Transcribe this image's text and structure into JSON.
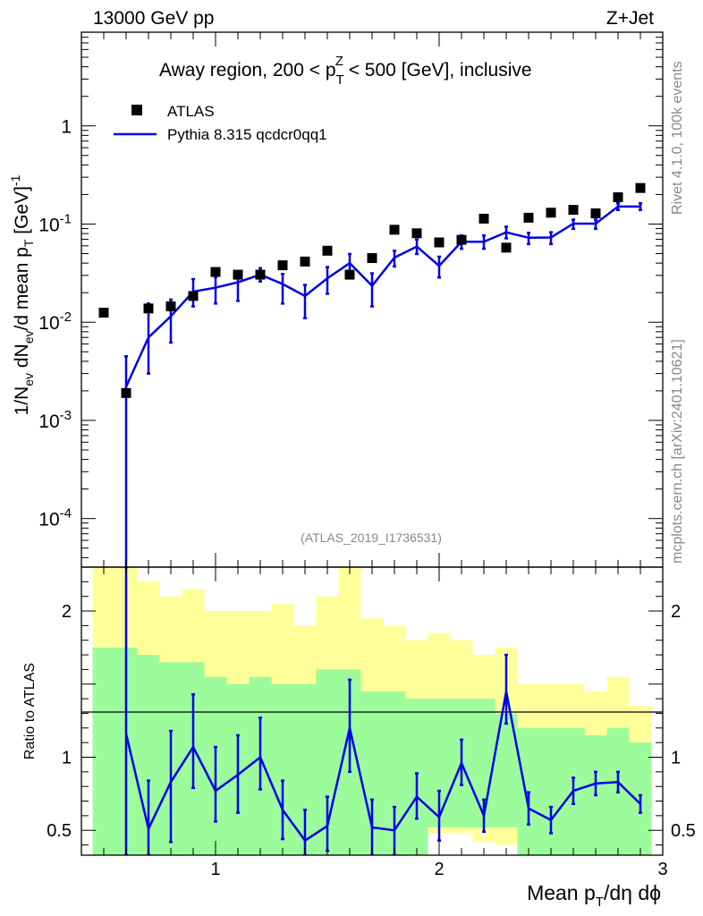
{
  "header": {
    "left": "13000 GeV pp",
    "right": "Z+Jet"
  },
  "side": {
    "rivet": "Rivet 4.1.0,  100k events",
    "mcplots": "mcplots.cern.ch [arXiv:2401.10621]"
  },
  "chart_data": [
    {
      "type": "scatter+line",
      "title": "Away region, 200 < p_T^Z < 500 [GeV], inclusive",
      "title_parts": {
        "pre": "Away region, 200 < p",
        "sub": "T",
        "sup": "Z",
        "post": " < 500 [GeV], inclusive"
      },
      "watermark": "(ATLAS_2019_I1736531)",
      "ylabel": "1/N_ev dN_ev/d mean p_T [GeV]^-1",
      "ylabel_parts": {
        "a": "1/N",
        "a_sub": "ev",
        "b": " dN",
        "b_sub": "ev",
        "c": "/d mean p",
        "c_sub": "T",
        "d": " [GeV]",
        "d_sup": "-1"
      },
      "yscale": "log",
      "ylim": [
        3.2e-05,
        9.0
      ],
      "xlim": [
        0.4,
        3.0
      ],
      "yticks": [
        {
          "v": 0.0001,
          "m": "10",
          "e": "-4"
        },
        {
          "v": 0.001,
          "m": "10",
          "e": "-3"
        },
        {
          "v": 0.01,
          "m": "10",
          "e": "-2"
        },
        {
          "v": 0.1,
          "m": "10",
          "e": "-1"
        },
        {
          "v": 1,
          "m": "1",
          "e": ""
        }
      ],
      "legend": {
        "data": "ATLAS",
        "mc": "Pythia 8.315 qcdcr0qq1"
      },
      "series": [
        {
          "name": "ATLAS",
          "x": [
            0.5,
            0.6,
            0.7,
            0.8,
            0.9,
            1.0,
            1.1,
            1.2,
            1.3,
            1.4,
            1.5,
            1.6,
            1.7,
            1.8,
            1.9,
            2.0,
            2.1,
            2.2,
            2.3,
            2.4,
            2.5,
            2.6,
            2.7,
            2.8,
            2.9
          ],
          "y": [
            0.0125,
            0.0019,
            0.0138,
            0.0145,
            0.0185,
            0.0325,
            0.0305,
            0.0305,
            0.038,
            0.0415,
            0.0535,
            0.0305,
            0.045,
            0.0875,
            0.0805,
            0.065,
            0.069,
            0.1135,
            0.0575,
            0.116,
            0.1305,
            0.1395,
            0.1285,
            0.1875,
            0.233
          ]
        },
        {
          "name": "Pythia 8.315 qcdcr0qq1",
          "x": [
            0.6,
            0.7,
            0.8,
            0.9,
            1.0,
            1.1,
            1.2,
            1.3,
            1.4,
            1.5,
            1.6,
            1.7,
            1.8,
            1.9,
            2.0,
            2.1,
            2.2,
            2.3,
            2.4,
            2.5,
            2.6,
            2.7,
            2.8,
            2.9
          ],
          "y": [
            0.0022,
            0.007,
            0.0115,
            0.0205,
            0.0225,
            0.0255,
            0.0305,
            0.0245,
            0.0185,
            0.028,
            0.04,
            0.0235,
            0.0455,
            0.059,
            0.0375,
            0.066,
            0.066,
            0.0825,
            0.0725,
            0.073,
            0.101,
            0.101,
            0.151,
            0.151
          ],
          "ylo": [
            3e-05,
            0.003,
            0.0062,
            0.0145,
            0.0155,
            0.0165,
            0.026,
            0.0155,
            0.011,
            0.0195,
            0.0325,
            0.0145,
            0.037,
            0.0495,
            0.0285,
            0.056,
            0.056,
            0.0715,
            0.0625,
            0.0625,
            0.0895,
            0.0895,
            0.139,
            0.139
          ],
          "yhi": [
            0.0045,
            0.0155,
            0.017,
            0.0275,
            0.029,
            0.031,
            0.0355,
            0.031,
            0.024,
            0.0365,
            0.0495,
            0.0315,
            0.0535,
            0.0695,
            0.0465,
            0.0765,
            0.0765,
            0.094,
            0.0815,
            0.0825,
            0.111,
            0.111,
            0.163,
            0.163
          ]
        }
      ]
    },
    {
      "type": "ratio",
      "ylabel": "Ratio to ATLAS",
      "ylim": [
        0.33,
        2.3
      ],
      "xlim": [
        0.4,
        3.0
      ],
      "xlabel": "Mean p_T/dη dϕ",
      "xlabel_parts": {
        "a": "Mean p",
        "a_sub": "T",
        "b": "/dη dϕ"
      },
      "xticks": [
        1,
        2,
        3
      ],
      "yticks": [
        {
          "v": 0.5,
          "label": "0.5"
        },
        {
          "v": 1,
          "label": "1"
        },
        {
          "v": 2,
          "label": "2"
        }
      ],
      "bands": {
        "edges": [
          0.45,
          0.55,
          0.65,
          0.75,
          0.85,
          0.95,
          1.05,
          1.15,
          1.25,
          1.35,
          1.45,
          1.55,
          1.65,
          1.75,
          1.85,
          1.95,
          2.05,
          2.15,
          2.25,
          2.35,
          2.45,
          2.55,
          2.65,
          2.75,
          2.85,
          2.95
        ],
        "yellow_lo": [
          0.33,
          0.33,
          0.33,
          0.33,
          0.33,
          0.55,
          0.54,
          0.52,
          0.5,
          0.45,
          0.42,
          0.33,
          0.62,
          0.65,
          0.62,
          0.48,
          0.48,
          0.42,
          0.4,
          0.33,
          0.33,
          0.33,
          0.38,
          0.46,
          0.56
        ],
        "yellow_hi": [
          2.3,
          2.3,
          2.2,
          2.1,
          2.15,
          2.0,
          2.0,
          2.0,
          2.05,
          1.9,
          2.1,
          2.3,
          1.95,
          1.9,
          1.8,
          1.85,
          1.8,
          1.7,
          1.75,
          1.5,
          1.5,
          1.5,
          1.45,
          1.55,
          1.35
        ],
        "green_lo": [
          0.33,
          0.33,
          0.33,
          0.33,
          0.33,
          0.33,
          0.33,
          0.33,
          0.33,
          0.33,
          0.33,
          0.33,
          0.33,
          0.33,
          0.33,
          0.52,
          0.52,
          0.52,
          0.52,
          0.33,
          0.33,
          0.33,
          0.33,
          0.33,
          0.33
        ],
        "green_hi": [
          1.75,
          1.75,
          1.7,
          1.65,
          1.65,
          1.55,
          1.5,
          1.55,
          1.5,
          1.5,
          1.6,
          1.6,
          1.45,
          1.45,
          1.4,
          1.4,
          1.4,
          1.4,
          1.3,
          1.2,
          1.2,
          1.2,
          1.15,
          1.2,
          1.1
        ]
      },
      "series": [
        {
          "name": "Pythia 8.315 qcdcr0qq1 / ATLAS",
          "x": [
            0.6,
            0.7,
            0.8,
            0.9,
            1.0,
            1.1,
            1.2,
            1.3,
            1.4,
            1.5,
            1.6,
            1.7,
            1.8,
            1.9,
            2.0,
            2.1,
            2.2,
            2.3,
            2.4,
            2.5,
            2.6,
            2.7,
            2.8,
            2.9
          ],
          "y": [
            1.16,
            0.51,
            0.83,
            1.07,
            0.77,
            0.88,
            1.0,
            0.64,
            0.43,
            0.53,
            1.2,
            0.52,
            0.5,
            0.73,
            0.59,
            0.96,
            0.6,
            1.45,
            0.65,
            0.57,
            0.77,
            0.82,
            0.83,
            0.68
          ],
          "ylo": [
            0.33,
            0.33,
            0.42,
            0.79,
            0.56,
            0.62,
            0.78,
            0.44,
            0.33,
            0.36,
            0.9,
            0.33,
            0.33,
            0.58,
            0.43,
            0.81,
            0.49,
            1.23,
            0.54,
            0.48,
            0.68,
            0.74,
            0.76,
            0.62
          ],
          "yhi": [
            2.3,
            0.84,
            1.18,
            1.43,
            1.07,
            1.15,
            1.27,
            0.84,
            0.64,
            0.73,
            1.53,
            0.71,
            0.66,
            0.89,
            0.77,
            1.12,
            0.71,
            1.7,
            0.76,
            0.66,
            0.86,
            0.9,
            0.9,
            0.74
          ]
        }
      ]
    }
  ]
}
